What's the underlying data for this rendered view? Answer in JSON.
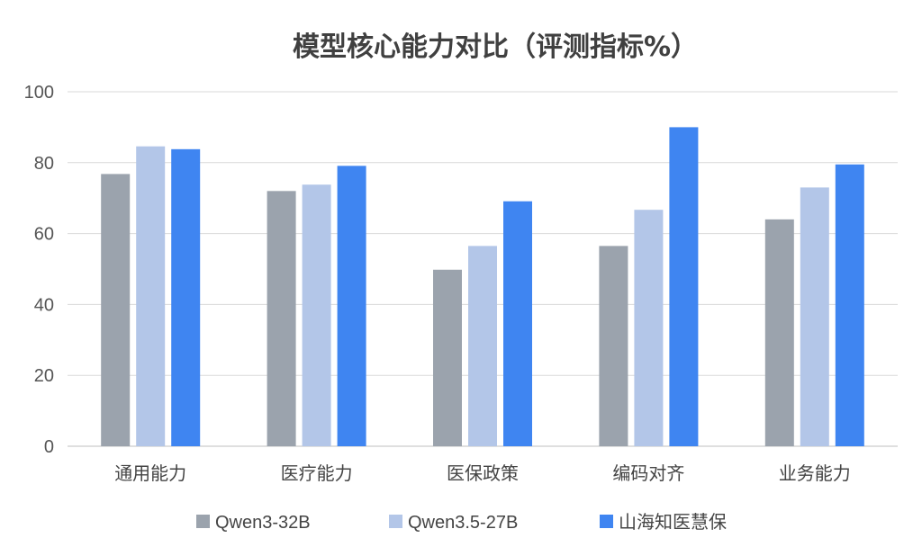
{
  "chart_data": {
    "type": "bar",
    "title": "模型核心能力对比（评测指标%）",
    "categories": [
      "通用能力",
      "医疗能力",
      "医保政策",
      "编码对齐",
      "业务能力"
    ],
    "series": [
      {
        "name": "Qwen3-32B",
        "color": "#9ba3ad",
        "values": [
          76.8,
          72,
          49.8,
          56.5,
          64
        ]
      },
      {
        "name": "Qwen3.5-27B",
        "color": "#b3c6e8",
        "values": [
          84.6,
          73.8,
          56.5,
          66.7,
          73
        ]
      },
      {
        "name": "山海知医慧保",
        "color": "#3f85f1",
        "values": [
          83.8,
          79.1,
          69.1,
          90,
          79.5
        ]
      }
    ],
    "ylim": [
      0,
      100
    ],
    "yticks": [
      "0",
      "20",
      "40",
      "60",
      "80",
      "100"
    ],
    "ytick_values": [
      0,
      20,
      40,
      60,
      80,
      100
    ],
    "grid": true,
    "legend": "bottom"
  }
}
